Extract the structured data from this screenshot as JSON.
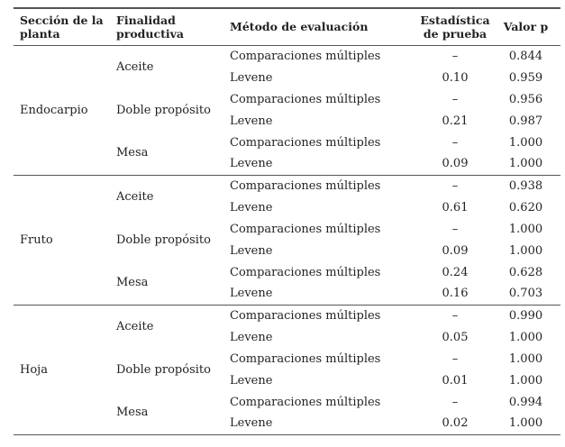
{
  "headers": {
    "section": "Sección de la planta",
    "purpose": "Finalidad productiva",
    "method": "Método de evaluación",
    "statistic": "Estadística de prueba",
    "pvalue": "Valor p"
  },
  "groups": [
    {
      "section": "Endocarpio",
      "purposes": [
        {
          "name": "Aceite",
          "rows": [
            {
              "method": "Comparaciones múltiples",
              "stat": "–",
              "p": "0.844"
            },
            {
              "method": "Levene",
              "stat": "0.10",
              "p": "0.959"
            }
          ]
        },
        {
          "name": "Doble propósito",
          "rows": [
            {
              "method": "Comparaciones múltiples",
              "stat": "–",
              "p": "0.956"
            },
            {
              "method": "Levene",
              "stat": "0.21",
              "p": "0.987"
            }
          ]
        },
        {
          "name": "Mesa",
          "rows": [
            {
              "method": "Comparaciones múltiples",
              "stat": "–",
              "p": "1.000"
            },
            {
              "method": "Levene",
              "stat": "0.09",
              "p": "1.000"
            }
          ]
        }
      ]
    },
    {
      "section": "Fruto",
      "purposes": [
        {
          "name": "Aceite",
          "rows": [
            {
              "method": "Comparaciones múltiples",
              "stat": "–",
              "p": "0.938"
            },
            {
              "method": "Levene",
              "stat": "0.61",
              "p": "0.620"
            }
          ]
        },
        {
          "name": "Doble propósito",
          "rows": [
            {
              "method": "Comparaciones múltiples",
              "stat": "–",
              "p": "1.000"
            },
            {
              "method": "Levene",
              "stat": "0.09",
              "p": "1.000"
            }
          ]
        },
        {
          "name": "Mesa",
          "rows": [
            {
              "method": "Comparaciones múltiples",
              "stat": "0.24",
              "p": "0.628"
            },
            {
              "method": "Levene",
              "stat": "0.16",
              "p": "0.703"
            }
          ]
        }
      ]
    },
    {
      "section": "Hoja",
      "purposes": [
        {
          "name": "Aceite",
          "rows": [
            {
              "method": "Comparaciones múltiples",
              "stat": "–",
              "p": "0.990"
            },
            {
              "method": "Levene",
              "stat": "0.05",
              "p": "1.000"
            }
          ]
        },
        {
          "name": "Doble propósito",
          "rows": [
            {
              "method": "Comparaciones múltiples",
              "stat": "–",
              "p": "1.000"
            },
            {
              "method": "Levene",
              "stat": "0.01",
              "p": "1.000"
            }
          ]
        },
        {
          "name": "Mesa",
          "rows": [
            {
              "method": "Comparaciones múltiples",
              "stat": "–",
              "p": "0.994"
            },
            {
              "method": "Levene",
              "stat": "0.02",
              "p": "1.000"
            }
          ]
        }
      ]
    }
  ]
}
